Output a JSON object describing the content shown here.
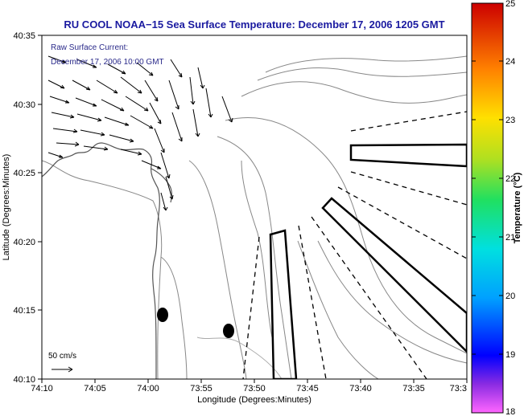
{
  "title": "RU COOL  NOAA−15  Sea Surface Temperature:  December 17, 2006 1205 GMT",
  "annotation": {
    "line1": "Raw Surface Current:",
    "line2": "December 17, 2006 10:00 GMT",
    "scale_label": "50 cm/s"
  },
  "axes": {
    "xlabel": "Longitude (Degrees:Minutes)",
    "ylabel": "Latitude (Degrees:Minutes)",
    "x_ticks": [
      "74:10",
      "74:05",
      "74:00",
      "73:55",
      "73:50",
      "73:45",
      "73:40",
      "73:35",
      "73:3"
    ],
    "y_ticks": [
      "40:35",
      "40:30",
      "40:25",
      "40:20",
      "40:15",
      "40:10"
    ]
  },
  "colorbar": {
    "label": "Temperature (°C)",
    "ticks": [
      "25",
      "24",
      "23",
      "22",
      "21",
      "20",
      "19",
      "18"
    ],
    "min": 18,
    "max": 25
  },
  "colors": {
    "title": "#1a1aa0",
    "annotation": "#2a2a8a",
    "land_contour": "#777777",
    "vectors": "#000000"
  },
  "map_features": {
    "vector_field": "surface current arrows near harbor entrance",
    "lanes": "shipping lane outlines (solid) and boundaries (dashed)",
    "markers": "two black buoy markers"
  }
}
